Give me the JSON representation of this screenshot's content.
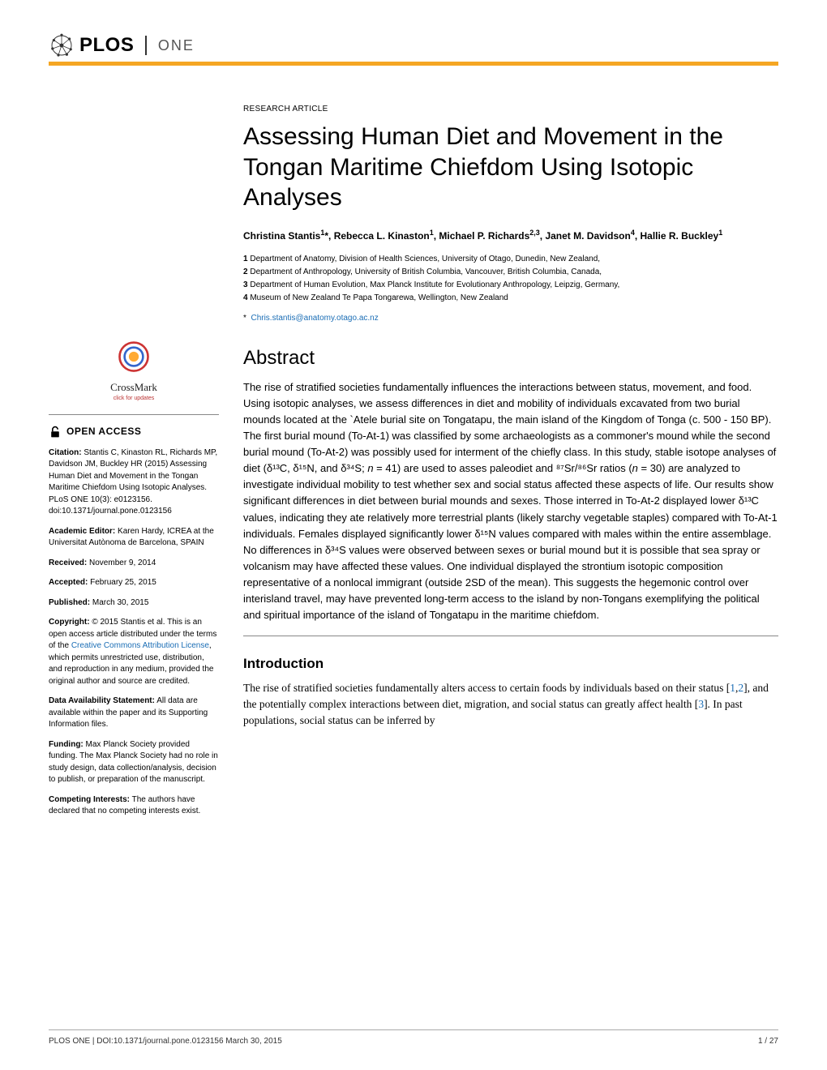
{
  "header": {
    "logo_text": "PLOS",
    "journal": "ONE"
  },
  "article": {
    "type": "RESEARCH ARTICLE",
    "title": "Assessing Human Diet and Movement in the Tongan Maritime Chiefdom Using Isotopic Analyses",
    "authors_html": "Christina Stantis<sup>1</sup>*, Rebecca L. Kinaston<sup>1</sup>, Michael P. Richards<sup>2,3</sup>, Janet M. Davidson<sup>4</sup>, Hallie R. Buckley<sup>1</sup>",
    "affiliations": [
      "1 Department of Anatomy, Division of Health Sciences, University of Otago, Dunedin, New Zealand,",
      "2 Department of Anthropology, University of British Columbia, Vancouver, British Columbia, Canada,",
      "3 Department of Human Evolution, Max Planck Institute for Evolutionary Anthropology, Leipzig, Germany,",
      "4 Museum of New Zealand Te Papa Tongarewa, Wellington, New Zealand"
    ],
    "corr_marker": "*",
    "corr_email": "Chris.stantis@anatomy.otago.ac.nz"
  },
  "abstract": {
    "heading": "Abstract",
    "text": "The rise of stratified societies fundamentally influences the interactions between status, movement, and food. Using isotopic analyses, we assess differences in diet and mobility of individuals excavated from two burial mounds located at the `Atele burial site on Tongatapu, the main island of the Kingdom of Tonga (c. 500 - 150 BP). The first burial mound (To-At-1) was classified by some archaeologists as a commoner's mound while the second burial mound (To-At-2) was possibly used for interment of the chiefly class. In this study, stable isotope analyses of diet (δ¹³C, δ¹⁵N, and δ³⁴S; n = 41) are used to asses paleodiet and ⁸⁷Sr/⁸⁶Sr ratios (n = 30) are analyzed to investigate individual mobility to test whether sex and social status affected these aspects of life. Our results show significant differences in diet between burial mounds and sexes. Those interred in To-At-2 displayed lower δ¹³C values, indicating they ate relatively more terrestrial plants (likely starchy vegetable staples) compared with To-At-1 individuals. Females displayed significantly lower δ¹⁵N values compared with males within the entire assemblage. No differences in δ³⁴S values were observed between sexes or burial mound but it is possible that sea spray or volcanism may have affected these values. One individual displayed the strontium isotopic composition representative of a nonlocal immigrant (outside 2SD of the mean). This suggests the hegemonic control over interisland travel, may have prevented long-term access to the island by non-Tongans exemplifying the political and spiritual importance of the island of Tongatapu in the maritime chiefdom."
  },
  "introduction": {
    "heading": "Introduction",
    "text_pre": "The rise of stratified societies fundamentally alters access to certain foods by individuals based on their status [",
    "ref1": "1",
    "ref_sep1": ",",
    "ref2": "2",
    "text_mid": "], and the potentially complex interactions between diet, migration, and social status can greatly affect health [",
    "ref3": "3",
    "text_post": "]. In past populations, social status can be inferred by"
  },
  "sidebar": {
    "crossmark_label": "CrossMark",
    "crossmark_sub": "click for updates",
    "open_access": "OPEN ACCESS",
    "citation_label": "Citation:",
    "citation_text": " Stantis C, Kinaston RL, Richards MP, Davidson JM, Buckley HR (2015) Assessing Human Diet and Movement in the Tongan Maritime Chiefdom Using Isotopic Analyses. PLoS ONE 10(3): e0123156. doi:10.1371/journal.pone.0123156",
    "editor_label": "Academic Editor:",
    "editor_text": " Karen Hardy, ICREA at the Universitat Autònoma de Barcelona, SPAIN",
    "received_label": "Received:",
    "received_text": " November 9, 2014",
    "accepted_label": "Accepted:",
    "accepted_text": " February 25, 2015",
    "published_label": "Published:",
    "published_text": " March 30, 2015",
    "copyright_label": "Copyright:",
    "copyright_pre": " © 2015 Stantis et al. This is an open access article distributed under the terms of the ",
    "copyright_link": "Creative Commons Attribution License",
    "copyright_post": ", which permits unrestricted use, distribution, and reproduction in any medium, provided the original author and source are credited.",
    "data_label": "Data Availability Statement:",
    "data_text": " All data are available within the paper and its Supporting Information files.",
    "funding_label": "Funding:",
    "funding_text": " Max Planck Society provided funding. The Max Planck Society had no role in study design, data collection/analysis, decision to publish, or preparation of the manuscript.",
    "competing_label": "Competing Interests:",
    "competing_text": " The authors have declared that no competing interests exist."
  },
  "footer": {
    "left": "PLOS ONE | DOI:10.1371/journal.pone.0123156   March 30, 2015",
    "right": "1 / 27"
  },
  "colors": {
    "accent": "#f5a623",
    "link": "#1a6db5",
    "text": "#000000"
  }
}
